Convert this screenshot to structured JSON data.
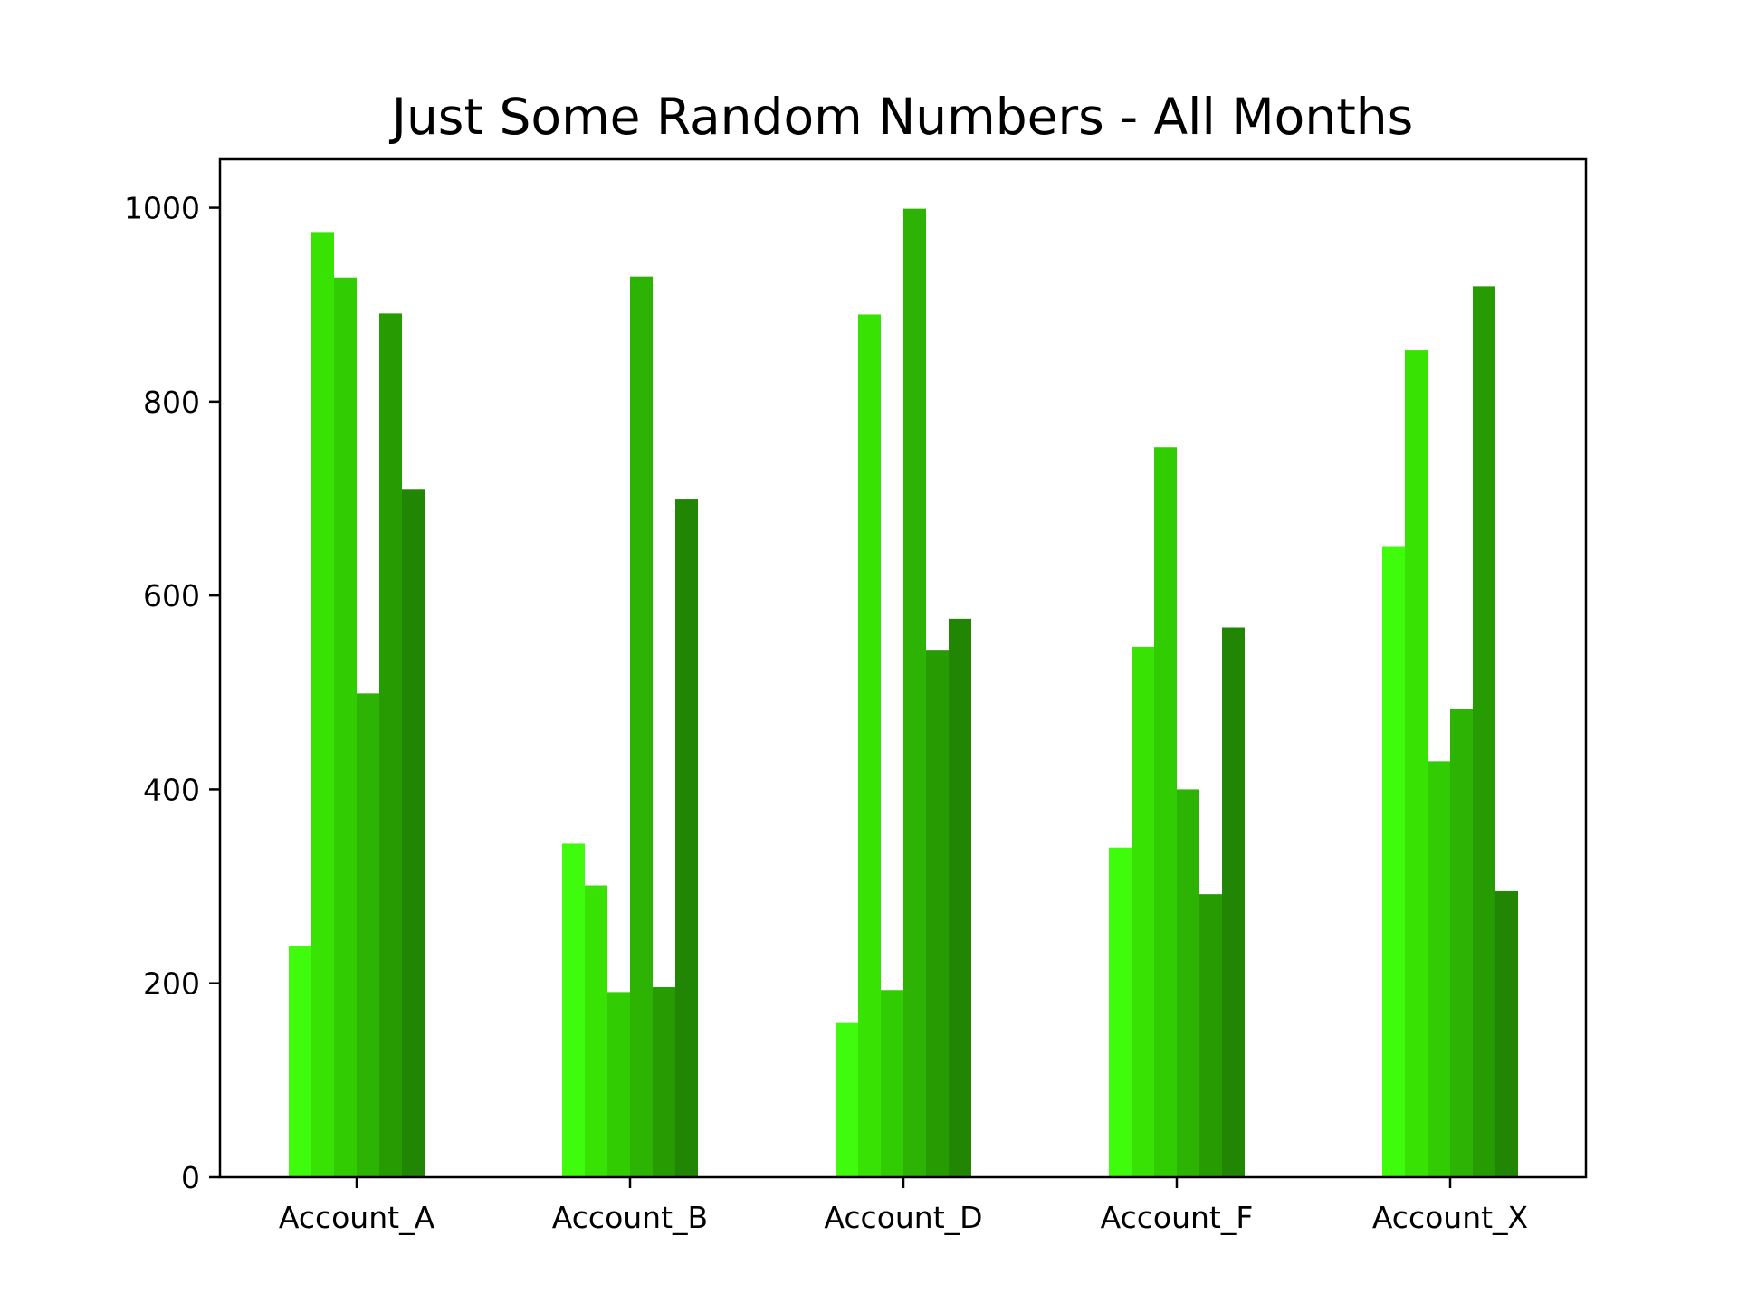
{
  "chart_data": {
    "type": "bar",
    "title": "Just Some Random Numbers - All Months",
    "xlabel": "",
    "ylabel": "",
    "ylim": [
      0,
      1050
    ],
    "yticks": [
      0,
      200,
      400,
      600,
      800,
      1000
    ],
    "grid": false,
    "legend": "none",
    "categories": [
      "Account_A",
      "Account_B",
      "Account_D",
      "Account_F",
      "Account_X"
    ],
    "series": [
      {
        "color": "#3ffb0c",
        "values": [
          238,
          344,
          159,
          340,
          651
        ]
      },
      {
        "color": "#38e304",
        "values": [
          975,
          301,
          890,
          547,
          853
        ]
      },
      {
        "color": "#32cc02",
        "values": [
          928,
          191,
          193,
          753,
          429
        ]
      },
      {
        "color": "#2db303",
        "values": [
          499,
          929,
          999,
          400,
          483
        ]
      },
      {
        "color": "#279c02",
        "values": [
          891,
          196,
          544,
          292,
          919
        ]
      },
      {
        "color": "#218603",
        "values": [
          710,
          699,
          576,
          567,
          295
        ]
      }
    ]
  }
}
